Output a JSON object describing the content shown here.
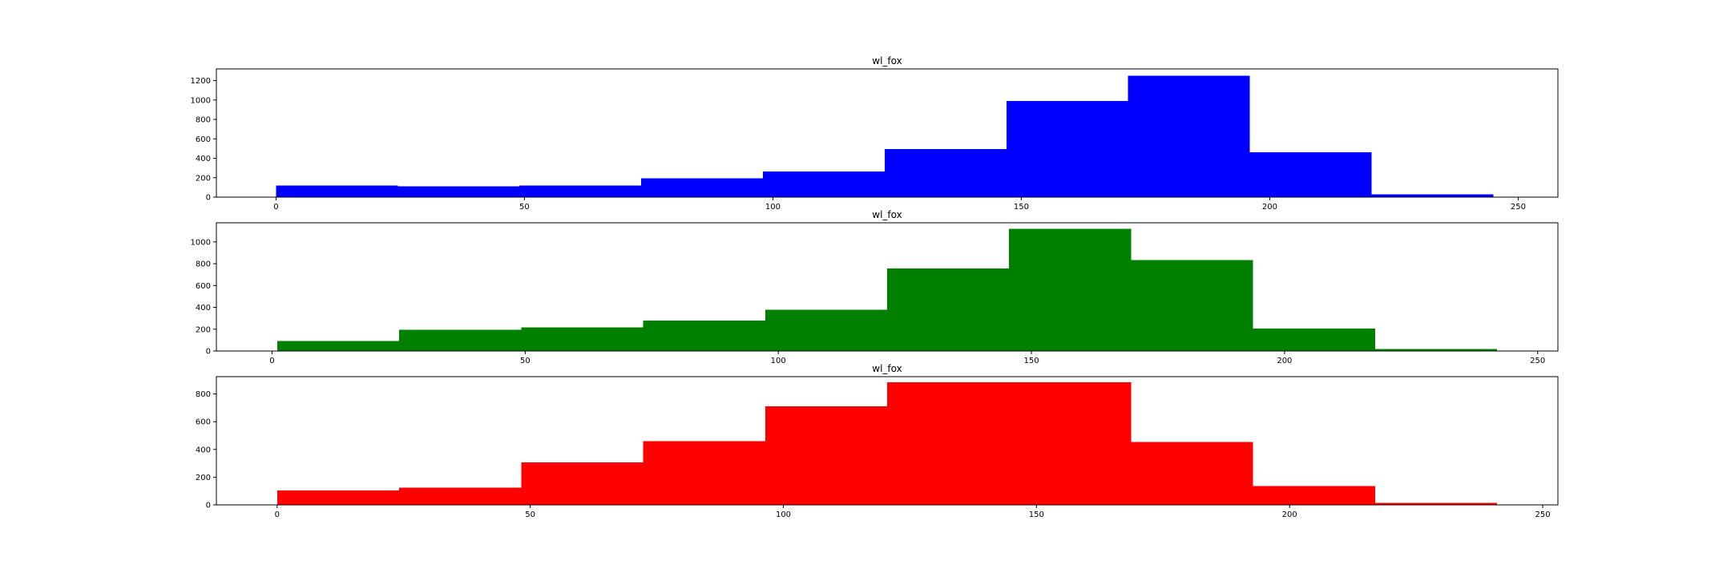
{
  "chart_data": [
    {
      "type": "bar",
      "title": "wl_fox",
      "color": "#0000ff",
      "xlim": [
        -12,
        258
      ],
      "ylim": [
        0,
        1320
      ],
      "xticks": [
        0,
        50,
        100,
        150,
        200,
        250
      ],
      "xtick_labels": [
        "0",
        "50",
        "100",
        "150",
        "200",
        "250"
      ],
      "yticks": [
        0,
        200,
        400,
        600,
        800,
        1000,
        1200
      ],
      "ytick_labels": [
        "0",
        "200",
        "400",
        "600",
        "800",
        "1000",
        "1200"
      ],
      "bins": [
        {
          "x0": 0,
          "x1": 24.5,
          "value": 120
        },
        {
          "x0": 24.5,
          "x1": 49,
          "value": 110
        },
        {
          "x0": 49,
          "x1": 73.5,
          "value": 120
        },
        {
          "x0": 73.5,
          "x1": 98,
          "value": 195
        },
        {
          "x0": 98,
          "x1": 122.5,
          "value": 265
        },
        {
          "x0": 122.5,
          "x1": 147,
          "value": 495
        },
        {
          "x0": 147,
          "x1": 171.5,
          "value": 990
        },
        {
          "x0": 171.5,
          "x1": 196,
          "value": 1250
        },
        {
          "x0": 196,
          "x1": 220.5,
          "value": 460
        },
        {
          "x0": 220.5,
          "x1": 245,
          "value": 30
        }
      ]
    },
    {
      "type": "bar",
      "title": "wl_fox",
      "color": "#008000",
      "xlim": [
        -11,
        254
      ],
      "ylim": [
        0,
        1175
      ],
      "xticks": [
        0,
        50,
        100,
        150,
        200,
        250
      ],
      "xtick_labels": [
        "0",
        "50",
        "100",
        "150",
        "200",
        "250"
      ],
      "yticks": [
        0,
        200,
        400,
        600,
        800,
        1000
      ],
      "ytick_labels": [
        "0",
        "200",
        "400",
        "600",
        "800",
        "1000"
      ],
      "bins": [
        {
          "x0": 1,
          "x1": 25.1,
          "value": 90
        },
        {
          "x0": 25.1,
          "x1": 49.2,
          "value": 195
        },
        {
          "x0": 49.2,
          "x1": 73.3,
          "value": 215
        },
        {
          "x0": 73.3,
          "x1": 97.4,
          "value": 280
        },
        {
          "x0": 97.4,
          "x1": 121.5,
          "value": 380
        },
        {
          "x0": 121.5,
          "x1": 145.6,
          "value": 755
        },
        {
          "x0": 145.6,
          "x1": 169.7,
          "value": 1120
        },
        {
          "x0": 169.7,
          "x1": 193.8,
          "value": 835
        },
        {
          "x0": 193.8,
          "x1": 217.9,
          "value": 205
        },
        {
          "x0": 217.9,
          "x1": 242,
          "value": 20
        }
      ]
    },
    {
      "type": "bar",
      "title": "wl_fox",
      "color": "#ff0000",
      "xlim": [
        -12,
        253
      ],
      "ylim": [
        0,
        925
      ],
      "xticks": [
        0,
        50,
        100,
        150,
        200,
        250
      ],
      "xtick_labels": [
        "0",
        "50",
        "100",
        "150",
        "200",
        "250"
      ],
      "yticks": [
        0,
        200,
        400,
        600,
        800
      ],
      "ytick_labels": [
        "0",
        "200",
        "400",
        "600",
        "800"
      ],
      "bins": [
        {
          "x0": 0,
          "x1": 24.1,
          "value": 105
        },
        {
          "x0": 24.1,
          "x1": 48.2,
          "value": 125
        },
        {
          "x0": 48.2,
          "x1": 72.3,
          "value": 305
        },
        {
          "x0": 72.3,
          "x1": 96.4,
          "value": 460
        },
        {
          "x0": 96.4,
          "x1": 120.5,
          "value": 710
        },
        {
          "x0": 120.5,
          "x1": 144.6,
          "value": 885
        },
        {
          "x0": 144.6,
          "x1": 168.7,
          "value": 885
        },
        {
          "x0": 168.7,
          "x1": 192.8,
          "value": 455
        },
        {
          "x0": 192.8,
          "x1": 216.9,
          "value": 135
        },
        {
          "x0": 216.9,
          "x1": 241,
          "value": 15
        }
      ]
    }
  ]
}
